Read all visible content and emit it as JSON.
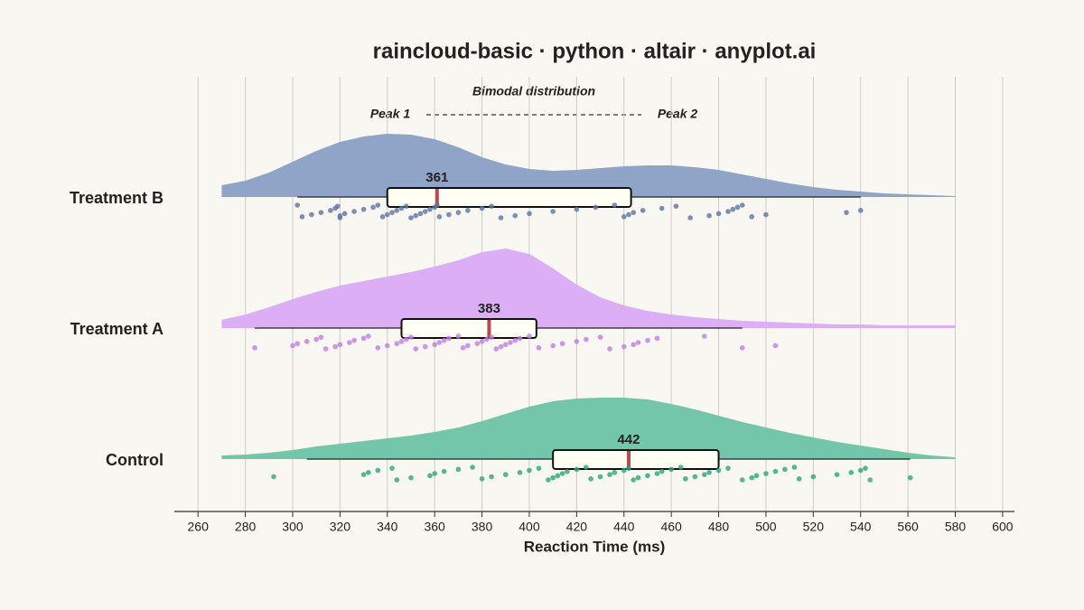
{
  "chart_data": {
    "type": "raincloud",
    "title": "raincloud-basic · python · altair · anyplot.ai",
    "x_label": "Reaction Time (ms)",
    "xlim": [
      250,
      605
    ],
    "xticks": [
      260,
      280,
      300,
      320,
      340,
      360,
      380,
      400,
      420,
      440,
      460,
      480,
      500,
      520,
      540,
      560,
      580,
      600
    ],
    "grid": true,
    "annotations": {
      "title": "Bimodal distribution",
      "peak1": "Peak 1",
      "peak2": "Peak 2"
    },
    "density_x": [
      270,
      280,
      290,
      300,
      310,
      320,
      330,
      340,
      350,
      360,
      370,
      380,
      390,
      400,
      410,
      420,
      430,
      440,
      450,
      460,
      470,
      480,
      490,
      500,
      510,
      520,
      530,
      540,
      550,
      560,
      570,
      580
    ],
    "series": [
      {
        "name": "Treatment B",
        "color": "#8fa4c6",
        "point_color": "#5a73a8",
        "density": [
          0.13,
          0.18,
          0.27,
          0.39,
          0.51,
          0.61,
          0.67,
          0.7,
          0.69,
          0.64,
          0.55,
          0.44,
          0.36,
          0.31,
          0.29,
          0.3,
          0.32,
          0.34,
          0.35,
          0.35,
          0.33,
          0.3,
          0.25,
          0.2,
          0.15,
          0.11,
          0.08,
          0.06,
          0.04,
          0.03,
          0.02,
          0.01
        ],
        "min": 302,
        "q1": 340,
        "median": 361,
        "q3": 443,
        "max": 540,
        "points": [
          302,
          304,
          308,
          312,
          316,
          318,
          319,
          320,
          320,
          322,
          326,
          330,
          334,
          336,
          338,
          340,
          342,
          344,
          346,
          348,
          350,
          352,
          354,
          356,
          358,
          360,
          361,
          362,
          366,
          370,
          374,
          380,
          384,
          388,
          394,
          400,
          410,
          420,
          428,
          436,
          440,
          442,
          444,
          448,
          456,
          462,
          468,
          476,
          480,
          484,
          486,
          488,
          490,
          494,
          500,
          534,
          540
        ]
      },
      {
        "name": "Treatment A",
        "color": "#dcaef5",
        "point_color": "#c27be6",
        "density": [
          0.09,
          0.15,
          0.23,
          0.32,
          0.4,
          0.47,
          0.52,
          0.57,
          0.62,
          0.68,
          0.75,
          0.84,
          0.88,
          0.82,
          0.66,
          0.48,
          0.34,
          0.25,
          0.19,
          0.15,
          0.12,
          0.1,
          0.08,
          0.07,
          0.06,
          0.05,
          0.04,
          0.04,
          0.03,
          0.03,
          0.03,
          0.03
        ],
        "min": 284,
        "q1": 346,
        "median": 383,
        "q3": 403,
        "max": 490,
        "points": [
          284,
          300,
          302,
          306,
          310,
          312,
          314,
          318,
          320,
          324,
          326,
          330,
          332,
          336,
          340,
          344,
          346,
          348,
          350,
          352,
          356,
          360,
          362,
          364,
          366,
          370,
          372,
          374,
          378,
          380,
          382,
          384,
          386,
          388,
          390,
          392,
          394,
          396,
          400,
          404,
          410,
          414,
          420,
          424,
          430,
          434,
          440,
          444,
          446,
          450,
          454,
          474,
          490,
          504
        ]
      },
      {
        "name": "Control",
        "color": "#73c6a9",
        "point_color": "#2aa57a",
        "density": [
          0.04,
          0.05,
          0.07,
          0.1,
          0.14,
          0.17,
          0.2,
          0.23,
          0.26,
          0.3,
          0.35,
          0.42,
          0.5,
          0.58,
          0.64,
          0.67,
          0.68,
          0.68,
          0.66,
          0.61,
          0.55,
          0.48,
          0.41,
          0.35,
          0.29,
          0.24,
          0.19,
          0.15,
          0.11,
          0.07,
          0.04,
          0.02
        ],
        "min": 306,
        "q1": 410,
        "median": 442,
        "q3": 480,
        "max": 561,
        "points": [
          292,
          330,
          332,
          336,
          342,
          344,
          350,
          358,
          360,
          364,
          370,
          376,
          380,
          384,
          390,
          396,
          400,
          404,
          408,
          410,
          412,
          414,
          416,
          420,
          424,
          426,
          430,
          434,
          436,
          440,
          442,
          444,
          446,
          450,
          454,
          456,
          460,
          464,
          466,
          470,
          474,
          476,
          480,
          484,
          490,
          494,
          496,
          500,
          504,
          508,
          512,
          514,
          520,
          530,
          536,
          540,
          542,
          544,
          561
        ]
      }
    ]
  }
}
